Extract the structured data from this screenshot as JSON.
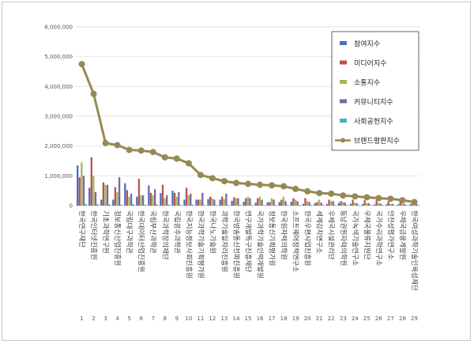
{
  "chart_data": {
    "type": "bar",
    "ylim": [
      0,
      6000000
    ],
    "yticks": [
      "0",
      "1,000,000",
      "2,000,000",
      "3,000,000",
      "4,000,000",
      "5,000,000",
      "6,000,000"
    ],
    "ytick_values": [
      0,
      1000000,
      2000000,
      3000000,
      4000000,
      5000000,
      6000000
    ],
    "grid": true,
    "legend_position": "top-right",
    "indices": [
      "1",
      "2",
      "3",
      "4",
      "5",
      "6",
      "7",
      "8",
      "9",
      "10",
      "11",
      "12",
      "13",
      "14",
      "15",
      "16",
      "17",
      "18",
      "19",
      "20",
      "21",
      "22",
      "23",
      "24",
      "25",
      "26",
      "27",
      "28",
      "29"
    ],
    "categories": [
      "한국연구재단",
      "한국인터넷진흥원",
      "기초과학연구원",
      "정보통신산업진흥원",
      "국립대구과학관",
      "한국데이터산업진흥원",
      "국립부산과학관",
      "한국과학창의재단",
      "국립광주과학관",
      "한국지능정보사회진흥원",
      "한국과학기술기획평가원",
      "한국나노기술원",
      "과학기술일자리진흥원",
      "한국방송통신전파진흥원",
      "연구개발특구진흥재단",
      "국가과학기술인력개발원",
      "정보통신기획평가원",
      "한국원자력의학원",
      "소프트웨어정책연구소",
      "한국우편사업진흥원",
      "세계김치연구소",
      "우체국시설관리단",
      "동남권원자력의학원",
      "국가녹색기술연구소",
      "우체국물류지원단",
      "국가수리과학연구소",
      "안전성평가연구소",
      "우체국금융개발원",
      "한국여성과학기술인육성재단"
    ],
    "series": [
      {
        "name": "참여지수",
        "color": "#4472C4",
        "values": [
          1350000,
          600000,
          200000,
          200000,
          750000,
          300000,
          680000,
          420000,
          500000,
          200000,
          200000,
          220000,
          200000,
          160000,
          130000,
          100000,
          110000,
          120000,
          130000,
          60000,
          80000,
          50000,
          90000,
          60000,
          50000,
          40000,
          40000,
          40000,
          40000
        ]
      },
      {
        "name": "미디어지수",
        "color": "#C0504D",
        "values": [
          950000,
          1620000,
          780000,
          620000,
          520000,
          900000,
          430000,
          700000,
          430000,
          600000,
          200000,
          300000,
          300000,
          280000,
          250000,
          250000,
          120000,
          200000,
          250000,
          250000,
          120000,
          200000,
          150000,
          200000,
          180000,
          180000,
          150000,
          150000,
          120000
        ]
      },
      {
        "name": "소통지수",
        "color": "#9BBB59",
        "values": [
          1450000,
          1000000,
          700000,
          450000,
          300000,
          350000,
          350000,
          250000,
          300000,
          350000,
          200000,
          250000,
          220000,
          250000,
          300000,
          300000,
          250000,
          300000,
          200000,
          150000,
          200000,
          150000,
          120000,
          100000,
          80000,
          80000,
          60000,
          80000,
          50000
        ]
      },
      {
        "name": "커뮤니티지수",
        "color": "#8064A2",
        "values": [
          1000000,
          450000,
          700000,
          950000,
          400000,
          350000,
          550000,
          350000,
          450000,
          400000,
          430000,
          200000,
          400000,
          250000,
          250000,
          200000,
          200000,
          150000,
          150000,
          120000,
          100000,
          150000,
          100000,
          80000,
          80000,
          70000,
          60000,
          60000,
          50000
        ]
      },
      {
        "name": "사회공헌지수",
        "color": "#4BACC6",
        "values": [
          60000,
          50000,
          40000,
          30000,
          50000,
          30000,
          40000,
          30000,
          20000,
          30000,
          20000,
          20000,
          20000,
          20000,
          20000,
          20000,
          20000,
          20000,
          20000,
          20000,
          20000,
          20000,
          20000,
          20000,
          20000,
          20000,
          20000,
          20000,
          20000
        ]
      },
      {
        "name": "브랜드평판지수",
        "color": "#948A54",
        "values": [
          4750000,
          3750000,
          2100000,
          2030000,
          1870000,
          1850000,
          1800000,
          1620000,
          1580000,
          1420000,
          1030000,
          920000,
          820000,
          760000,
          730000,
          700000,
          680000,
          650000,
          560000,
          480000,
          420000,
          400000,
          340000,
          310000,
          280000,
          250000,
          230000,
          180000,
          120000
        ]
      }
    ]
  }
}
